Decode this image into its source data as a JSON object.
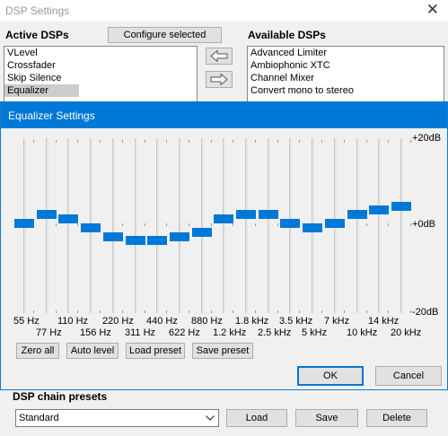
{
  "dsp_window": {
    "title": "DSP Settings",
    "close_glyph": "✕",
    "active_label": "Active DSPs",
    "configure_button": "Configure selected",
    "available_label": "Available DSPs",
    "active_dsps": [
      "VLevel",
      "Crossfader",
      "Skip Silence",
      "Equalizer"
    ],
    "selected_active": "Equalizer",
    "available_dsps": [
      "Advanced Limiter",
      "Ambiophonic XTC",
      "Channel Mixer",
      "Convert mono to stereo"
    ]
  },
  "equalizer": {
    "title": "Equalizer Settings",
    "db_labels": {
      "top": "+20dB",
      "mid": "+0dB",
      "bottom": "-20dB"
    },
    "bands": [
      {
        "freq": "55 Hz",
        "gain_db": 0
      },
      {
        "freq": "77 Hz",
        "gain_db": 2
      },
      {
        "freq": "110 Hz",
        "gain_db": 1
      },
      {
        "freq": "156 Hz",
        "gain_db": -1
      },
      {
        "freq": "220 Hz",
        "gain_db": -3
      },
      {
        "freq": "311 Hz",
        "gain_db": -4
      },
      {
        "freq": "440 Hz",
        "gain_db": -4
      },
      {
        "freq": "622 Hz",
        "gain_db": -3
      },
      {
        "freq": "880 Hz",
        "gain_db": -2
      },
      {
        "freq": "1.2 kHz",
        "gain_db": 1
      },
      {
        "freq": "1.8 kHz",
        "gain_db": 2
      },
      {
        "freq": "2.5 kHz",
        "gain_db": 2
      },
      {
        "freq": "3.5 kHz",
        "gain_db": 0
      },
      {
        "freq": "5 kHz",
        "gain_db": -1
      },
      {
        "freq": "7 kHz",
        "gain_db": 0
      },
      {
        "freq": "10 kHz",
        "gain_db": 2
      },
      {
        "freq": "14 kHz",
        "gain_db": 3
      },
      {
        "freq": "20 kHz",
        "gain_db": 4
      }
    ],
    "buttons": {
      "zero_all": "Zero all",
      "auto_level": "Auto level",
      "load_preset": "Load preset",
      "save_preset": "Save preset"
    },
    "ok": "OK",
    "cancel": "Cancel"
  },
  "presets": {
    "label": "DSP chain presets",
    "selected": "Standard",
    "load": "Load",
    "save": "Save",
    "delete": "Delete"
  }
}
